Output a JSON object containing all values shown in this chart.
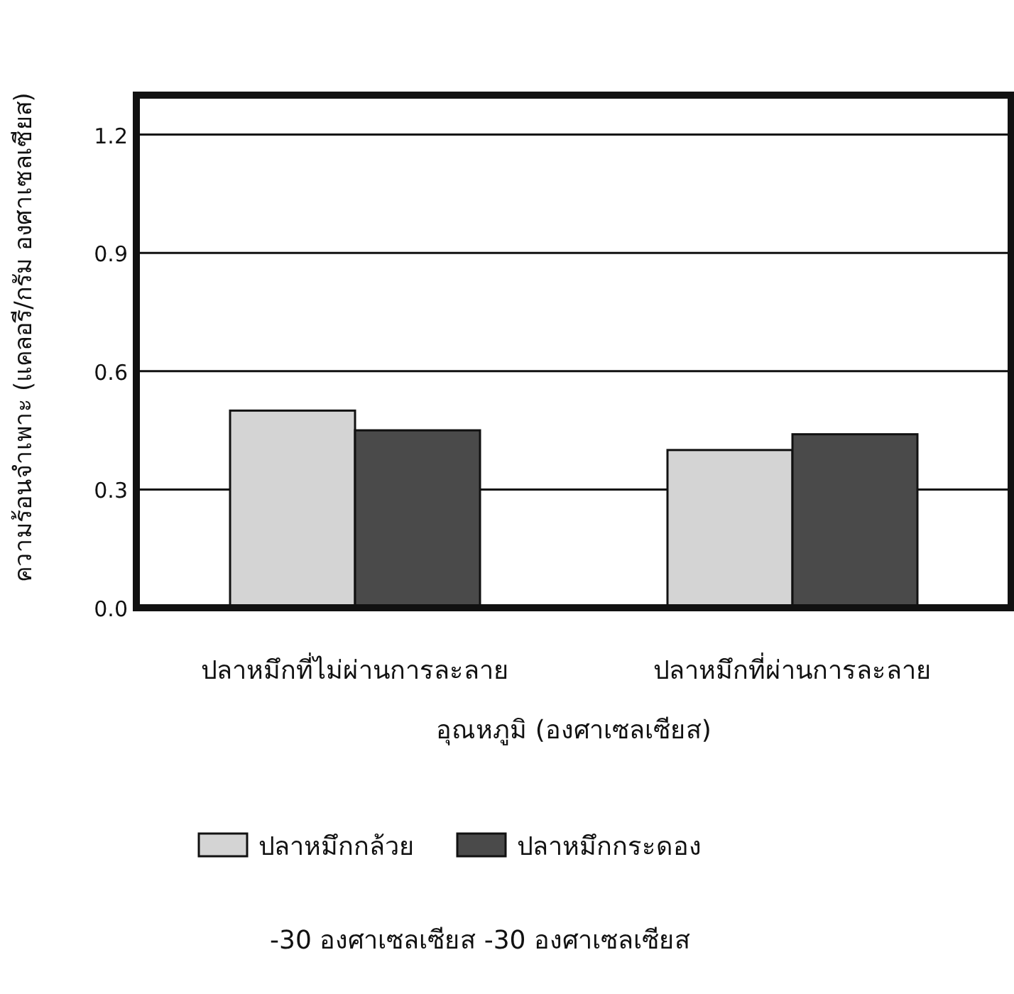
{
  "chart_data": {
    "type": "bar",
    "xlabel": "อุณหภูมิ (องศาเซลเซียส)",
    "ylabel": "ความร้อนจำเพาะ (แคลอรี/กรัม องศาเซลเซียส)",
    "categories": [
      "ปลาหมึกที่ไม่ผ่านการละลาย",
      "ปลาหมึกที่ผ่านการละลาย"
    ],
    "series": [
      {
        "name": "ปลาหมึกกล้วย",
        "color": "#d4d4d4",
        "values": [
          0.5,
          0.4
        ]
      },
      {
        "name": "ปลาหมึกกระดอง",
        "color": "#4a4a4a",
        "values": [
          0.45,
          0.44
        ]
      }
    ],
    "ylim": [
      0,
      1.3
    ],
    "yticks": [
      {
        "value": 0,
        "label": "0.0"
      },
      0.3,
      0.6,
      0.9,
      1.2
    ],
    "grid": "y",
    "legend": "bottom",
    "annotations": [
      "-30 องศาเซลเซียส -30 องศาเซลเซียส"
    ]
  }
}
